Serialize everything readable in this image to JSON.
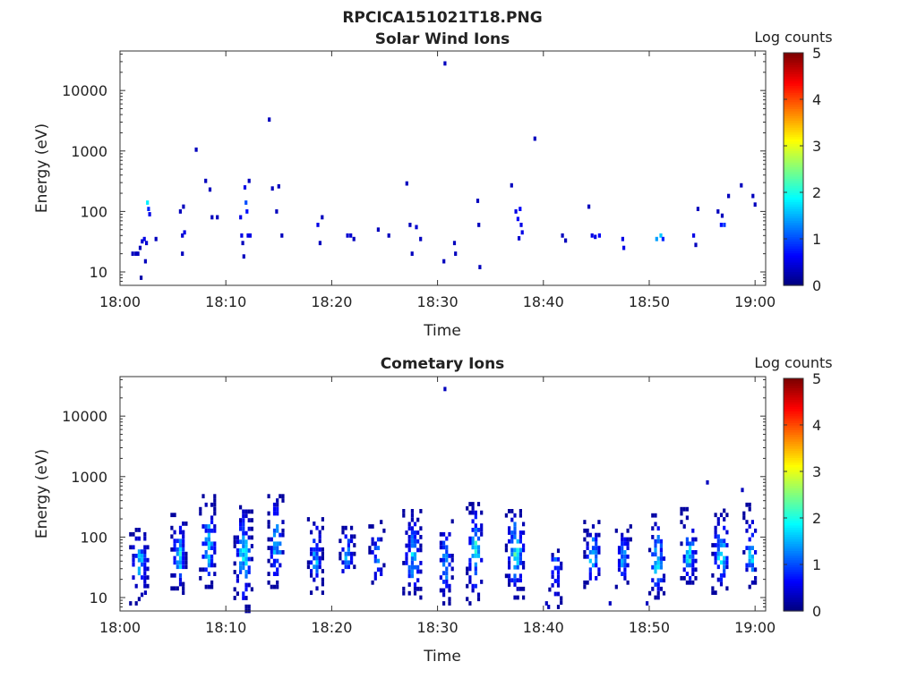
{
  "figure_title": "RPCICA151021T18.PNG",
  "chart_data": [
    {
      "type": "heatmap",
      "title": "Solar Wind Ions",
      "xlabel": "Time",
      "ylabel": "Energy (eV)",
      "x_ticks": [
        "18:00",
        "18:10",
        "18:20",
        "18:30",
        "18:40",
        "18:50",
        "19:00"
      ],
      "x_range_min": [
        0,
        61
      ],
      "y_scale": "log",
      "y_ticks": [
        10,
        100,
        1000,
        10000
      ],
      "y_tick_labels": [
        "10",
        "100",
        "1000",
        "10000"
      ],
      "y_range": [
        6,
        45000
      ],
      "colorbar": {
        "label": "Log counts",
        "ticks": [
          "0",
          "1",
          "2",
          "3",
          "4",
          "5"
        ],
        "range": [
          0,
          5
        ],
        "colormap": "jet"
      },
      "cells": [
        [
          1.2,
          20,
          0.3
        ],
        [
          1.5,
          20,
          0.3
        ],
        [
          1.7,
          20,
          0.3
        ],
        [
          1.9,
          25,
          0.3
        ],
        [
          2.0,
          8,
          0.2
        ],
        [
          2.1,
          32,
          0.4
        ],
        [
          2.3,
          35,
          0.5
        ],
        [
          2.4,
          15,
          0.3
        ],
        [
          2.5,
          30,
          0.4
        ],
        [
          2.6,
          140,
          1.8
        ],
        [
          2.7,
          110,
          0.8
        ],
        [
          2.8,
          90,
          0.5
        ],
        [
          3.4,
          35,
          0.3
        ],
        [
          5.7,
          100,
          0.3
        ],
        [
          5.9,
          40,
          0.4
        ],
        [
          6.1,
          45,
          0.5
        ],
        [
          5.9,
          20,
          0.3
        ],
        [
          6.0,
          120,
          0.3
        ],
        [
          7.2,
          1050,
          0.3
        ],
        [
          8.1,
          320,
          0.3
        ],
        [
          8.5,
          230,
          0.3
        ],
        [
          8.7,
          80,
          0.3
        ],
        [
          9.2,
          80,
          0.3
        ],
        [
          11.4,
          80,
          0.5
        ],
        [
          11.5,
          40,
          0.5
        ],
        [
          11.6,
          30,
          0.3
        ],
        [
          11.8,
          250,
          0.5
        ],
        [
          11.9,
          140,
          1.0
        ],
        [
          12.0,
          100,
          0.7
        ],
        [
          12.1,
          40,
          0.5
        ],
        [
          12.3,
          40,
          0.5
        ],
        [
          11.7,
          18,
          0.3
        ],
        [
          12.2,
          320,
          0.3
        ],
        [
          14.1,
          3300,
          0.3
        ],
        [
          14.4,
          240,
          0.3
        ],
        [
          14.8,
          100,
          0.3
        ],
        [
          15.0,
          260,
          0.3
        ],
        [
          15.3,
          40,
          0.3
        ],
        [
          18.7,
          60,
          0.5
        ],
        [
          18.9,
          30,
          0.3
        ],
        [
          19.1,
          80,
          0.3
        ],
        [
          21.5,
          40,
          0.4
        ],
        [
          21.8,
          40,
          0.4
        ],
        [
          22.1,
          35,
          0.3
        ],
        [
          24.4,
          50,
          0.3
        ],
        [
          25.4,
          40,
          0.3
        ],
        [
          27.1,
          290,
          0.3
        ],
        [
          27.4,
          60,
          0.3
        ],
        [
          27.6,
          20,
          0.3
        ],
        [
          28.0,
          55,
          0.4
        ],
        [
          28.4,
          35,
          0.3
        ],
        [
          30.7,
          28000,
          0.3
        ],
        [
          30.6,
          15,
          0.3
        ],
        [
          31.6,
          30,
          0.3
        ],
        [
          31.7,
          20,
          0.3
        ],
        [
          33.8,
          150,
          0.3
        ],
        [
          33.9,
          60,
          0.3
        ],
        [
          34.0,
          12,
          0.3
        ],
        [
          37.0,
          270,
          0.3
        ],
        [
          37.4,
          100,
          0.5
        ],
        [
          37.6,
          75,
          0.6
        ],
        [
          37.8,
          110,
          0.6
        ],
        [
          37.9,
          60,
          0.5
        ],
        [
          38.0,
          45,
          0.5
        ],
        [
          37.7,
          36,
          0.4
        ],
        [
          39.2,
          1600,
          0.3
        ],
        [
          41.8,
          40,
          0.3
        ],
        [
          42.1,
          33,
          0.3
        ],
        [
          44.3,
          120,
          0.3
        ],
        [
          44.6,
          40,
          0.5
        ],
        [
          44.9,
          38,
          0.5
        ],
        [
          45.3,
          40,
          0.6
        ],
        [
          47.5,
          35,
          0.5
        ],
        [
          47.6,
          25,
          0.5
        ],
        [
          50.7,
          35,
          1.4
        ],
        [
          51.1,
          40,
          1.6
        ],
        [
          51.3,
          35,
          0.8
        ],
        [
          54.2,
          40,
          0.5
        ],
        [
          54.4,
          28,
          0.3
        ],
        [
          54.6,
          110,
          0.3
        ],
        [
          56.5,
          100,
          0.3
        ],
        [
          56.8,
          60,
          0.7
        ],
        [
          57.1,
          60,
          0.9
        ],
        [
          56.9,
          85,
          0.3
        ],
        [
          57.5,
          180,
          0.3
        ],
        [
          58.7,
          270,
          0.3
        ],
        [
          59.8,
          180,
          0.3
        ],
        [
          60.0,
          130,
          0.3
        ]
      ]
    },
    {
      "type": "heatmap",
      "title": "Cometary Ions",
      "xlabel": "Time",
      "ylabel": "Energy (eV)",
      "x_ticks": [
        "18:00",
        "18:10",
        "18:20",
        "18:30",
        "18:40",
        "18:50",
        "19:00"
      ],
      "x_range_min": [
        0,
        61
      ],
      "y_scale": "log",
      "y_ticks": [
        10,
        100,
        1000,
        10000
      ],
      "y_tick_labels": [
        "10",
        "100",
        "1000",
        "10000"
      ],
      "y_range": [
        6,
        45000
      ],
      "colorbar": {
        "label": "Log counts",
        "ticks": [
          "0",
          "1",
          "2",
          "3",
          "4",
          "5"
        ],
        "range": [
          0,
          5
        ],
        "colormap": "jet"
      },
      "bursts": [
        {
          "t": 1.9,
          "peak": 40,
          "top": 150,
          "low": 8,
          "width": 1.8,
          "max": 2.3,
          "seed": 3
        },
        {
          "t": 5.6,
          "peak": 45,
          "top": 250,
          "low": 12,
          "width": 1.4,
          "max": 2.5,
          "seed": 7
        },
        {
          "t": 8.4,
          "peak": 60,
          "top": 500,
          "low": 15,
          "width": 1.6,
          "max": 2.4,
          "seed": 11
        },
        {
          "t": 11.7,
          "peak": 50,
          "top": 350,
          "low": 6,
          "width": 1.7,
          "max": 2.6,
          "seed": 13
        },
        {
          "t": 14.8,
          "peak": 60,
          "top": 600,
          "low": 15,
          "width": 1.5,
          "max": 2.3,
          "seed": 17
        },
        {
          "t": 18.5,
          "peak": 40,
          "top": 250,
          "low": 12,
          "width": 1.4,
          "max": 2.1,
          "seed": 19
        },
        {
          "t": 21.5,
          "peak": 45,
          "top": 200,
          "low": 12,
          "width": 1.4,
          "max": 2.0,
          "seed": 23
        },
        {
          "t": 24.3,
          "peak": 40,
          "top": 200,
          "low": 15,
          "width": 1.4,
          "max": 2.0,
          "seed": 29
        },
        {
          "t": 27.7,
          "peak": 40,
          "top": 300,
          "low": 10,
          "width": 1.8,
          "max": 2.2,
          "seed": 31
        },
        {
          "t": 30.8,
          "peak": 40,
          "top": 200,
          "low": 8,
          "width": 1.5,
          "max": 2.1,
          "seed": 37
        },
        {
          "t": 33.6,
          "peak": 60,
          "top": 400,
          "low": 8,
          "width": 1.6,
          "max": 2.5,
          "seed": 41
        },
        {
          "t": 37.4,
          "peak": 60,
          "top": 350,
          "low": 10,
          "width": 1.8,
          "max": 2.9,
          "seed": 43
        },
        {
          "t": 41.2,
          "peak": 40,
          "top": 60,
          "low": 7,
          "width": 1.2,
          "max": 1.8,
          "seed": 47
        },
        {
          "t": 44.7,
          "peak": 40,
          "top": 200,
          "low": 15,
          "width": 1.6,
          "max": 2.4,
          "seed": 53
        },
        {
          "t": 47.6,
          "peak": 40,
          "top": 150,
          "low": 15,
          "width": 1.4,
          "max": 2.0,
          "seed": 59
        },
        {
          "t": 50.8,
          "peak": 35,
          "top": 250,
          "low": 10,
          "width": 1.5,
          "max": 2.8,
          "seed": 61
        },
        {
          "t": 53.8,
          "peak": 45,
          "top": 300,
          "low": 15,
          "width": 1.5,
          "max": 2.5,
          "seed": 67
        },
        {
          "t": 56.8,
          "peak": 50,
          "top": 300,
          "low": 12,
          "width": 1.6,
          "max": 2.6,
          "seed": 71
        },
        {
          "t": 59.6,
          "peak": 40,
          "top": 350,
          "low": 15,
          "width": 1.3,
          "max": 2.2,
          "seed": 73
        }
      ],
      "cells": [
        [
          30.7,
          28000,
          0.3
        ],
        [
          2.4,
          12,
          0.3
        ],
        [
          40.3,
          8,
          0.3
        ],
        [
          40.5,
          7,
          0.3
        ],
        [
          46.3,
          8,
          0.3
        ],
        [
          49.8,
          8,
          0.3
        ],
        [
          55.5,
          800,
          0.3
        ],
        [
          58.8,
          600,
          0.3
        ]
      ]
    }
  ]
}
